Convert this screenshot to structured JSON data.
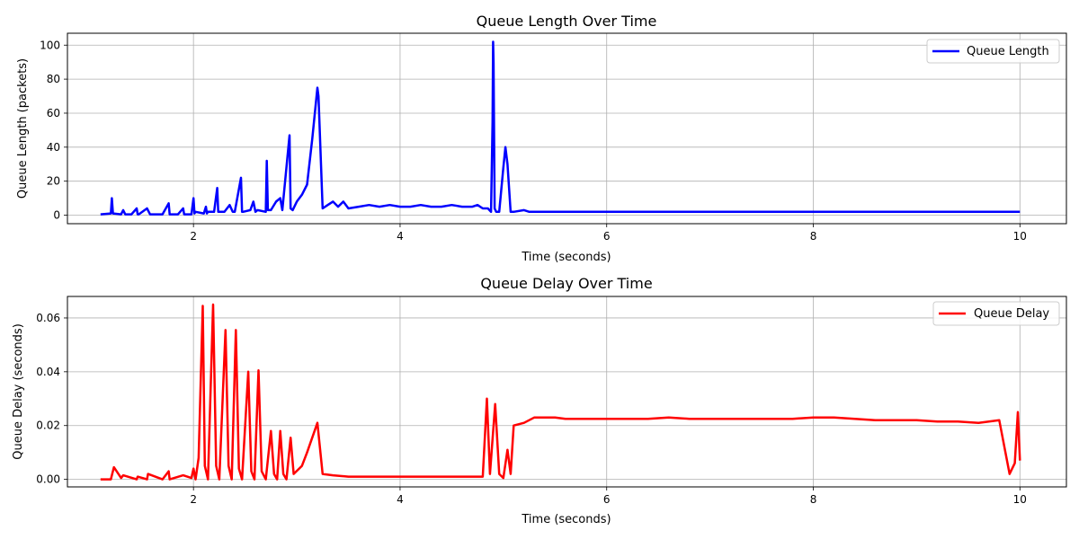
{
  "chart_data": [
    {
      "type": "line",
      "title": "Queue Length Over Time",
      "xlabel": "Time (seconds)",
      "ylabel": "Queue Length (packets)",
      "xlim": [
        0.78,
        10.45
      ],
      "ylim": [
        -5,
        107
      ],
      "xticks": [
        2,
        4,
        6,
        8,
        10
      ],
      "yticks": [
        0,
        20,
        40,
        60,
        80,
        100
      ],
      "grid": true,
      "legend_position": "top-right",
      "color": "#0000ff",
      "series": [
        {
          "name": "Queue Length",
          "x": [
            1.1,
            1.2,
            1.21,
            1.22,
            1.3,
            1.32,
            1.34,
            1.4,
            1.45,
            1.46,
            1.47,
            1.55,
            1.58,
            1.59,
            1.6,
            1.7,
            1.76,
            1.77,
            1.78,
            1.85,
            1.9,
            1.91,
            1.92,
            1.98,
            2.0,
            2.01,
            2.02,
            2.1,
            2.12,
            2.13,
            2.14,
            2.2,
            2.23,
            2.24,
            2.3,
            2.35,
            2.38,
            2.4,
            2.46,
            2.47,
            2.48,
            2.55,
            2.58,
            2.6,
            2.62,
            2.7,
            2.71,
            2.72,
            2.75,
            2.8,
            2.84,
            2.86,
            2.93,
            2.94,
            2.96,
            3.0,
            3.05,
            3.1,
            3.15,
            3.2,
            3.21,
            3.25,
            3.3,
            3.35,
            3.4,
            3.45,
            3.5,
            3.6,
            3.7,
            3.8,
            3.9,
            4.0,
            4.1,
            4.2,
            4.3,
            4.4,
            4.5,
            4.6,
            4.7,
            4.75,
            4.8,
            4.85,
            4.88,
            4.895,
            4.9,
            4.905,
            4.915,
            4.93,
            4.96,
            5.0,
            5.02,
            5.04,
            5.07,
            5.1,
            5.2,
            5.25,
            5.3,
            5.6,
            6.0,
            6.4,
            6.8,
            7.2,
            7.6,
            8.0,
            8.4,
            8.8,
            9.2,
            9.6,
            10.0
          ],
          "y": [
            0.5,
            1,
            10,
            1,
            0.5,
            3,
            0.5,
            0.5,
            4,
            0.5,
            0.5,
            4,
            0.5,
            0.5,
            0.5,
            0.5,
            7,
            0.5,
            0.5,
            0.5,
            4,
            0.5,
            0.5,
            0.5,
            10,
            1,
            2,
            1,
            5,
            1,
            2,
            2,
            16,
            2,
            2,
            6,
            2,
            2,
            22,
            2,
            2,
            3,
            8,
            2,
            3,
            2,
            32,
            3,
            3,
            8,
            10,
            3,
            47,
            4,
            3,
            8,
            12,
            18,
            45,
            75,
            70,
            4,
            6,
            8,
            5,
            8,
            4,
            5,
            6,
            5,
            6,
            5,
            5,
            6,
            5,
            5,
            6,
            5,
            5,
            6,
            4,
            4,
            2,
            55,
            102,
            90,
            4,
            2,
            2,
            28,
            40,
            30,
            2,
            2,
            3,
            2,
            2,
            2,
            2,
            2,
            2,
            2,
            2,
            2,
            2,
            2,
            2,
            2,
            2
          ]
        }
      ]
    },
    {
      "type": "line",
      "title": "Queue Delay Over Time",
      "xlabel": "Time (seconds)",
      "ylabel": "Queue Delay (seconds)",
      "xlim": [
        0.78,
        10.45
      ],
      "ylim": [
        -0.0028,
        0.068
      ],
      "xticks": [
        2,
        4,
        6,
        8,
        10
      ],
      "yticks": [
        0.0,
        0.02,
        0.04,
        0.06
      ],
      "ytick_labels": [
        "0.00",
        "0.02",
        "0.04",
        "0.06"
      ],
      "grid": true,
      "legend_position": "top-right",
      "color": "#ff0000",
      "series": [
        {
          "name": "Queue Delay",
          "x": [
            1.1,
            1.2,
            1.23,
            1.3,
            1.32,
            1.45,
            1.46,
            1.55,
            1.56,
            1.7,
            1.76,
            1.77,
            1.9,
            1.98,
            2.0,
            2.02,
            2.05,
            2.09,
            2.11,
            2.14,
            2.19,
            2.22,
            2.25,
            2.31,
            2.34,
            2.37,
            2.41,
            2.44,
            2.47,
            2.53,
            2.56,
            2.59,
            2.63,
            2.66,
            2.7,
            2.75,
            2.78,
            2.81,
            2.84,
            2.87,
            2.9,
            2.94,
            2.97,
            3.05,
            3.1,
            3.2,
            3.25,
            3.35,
            3.5,
            3.7,
            3.9,
            4.1,
            4.3,
            4.5,
            4.7,
            4.8,
            4.84,
            4.87,
            4.92,
            4.96,
            5.0,
            5.04,
            5.07,
            5.1,
            5.2,
            5.3,
            5.4,
            5.5,
            5.6,
            5.8,
            6.0,
            6.2,
            6.4,
            6.6,
            6.8,
            7.0,
            7.2,
            7.4,
            7.6,
            7.8,
            8.0,
            8.2,
            8.4,
            8.6,
            8.8,
            9.0,
            9.2,
            9.4,
            9.6,
            9.8,
            9.9,
            9.95,
            9.98,
            10.0
          ],
          "y": [
            0.0,
            0.0,
            0.0045,
            0.0005,
            0.0015,
            0.0,
            0.001,
            0.0,
            0.002,
            0.0,
            0.003,
            0.0,
            0.0015,
            0.0005,
            0.004,
            0.0,
            0.008,
            0.0645,
            0.005,
            0.0,
            0.065,
            0.005,
            0.0,
            0.0555,
            0.005,
            0.0,
            0.0555,
            0.004,
            0.0,
            0.04,
            0.003,
            0.0,
            0.0405,
            0.003,
            0.0,
            0.018,
            0.002,
            0.0,
            0.018,
            0.002,
            0.0,
            0.0155,
            0.002,
            0.005,
            0.01,
            0.021,
            0.002,
            0.0015,
            0.001,
            0.001,
            0.001,
            0.001,
            0.001,
            0.001,
            0.001,
            0.001,
            0.03,
            0.002,
            0.028,
            0.002,
            0.0005,
            0.011,
            0.002,
            0.02,
            0.021,
            0.023,
            0.023,
            0.023,
            0.0225,
            0.0225,
            0.0225,
            0.0225,
            0.0225,
            0.023,
            0.0225,
            0.0225,
            0.0225,
            0.0225,
            0.0225,
            0.0225,
            0.023,
            0.023,
            0.0225,
            0.022,
            0.022,
            0.022,
            0.0215,
            0.0215,
            0.021,
            0.022,
            0.002,
            0.006,
            0.025,
            0.007
          ]
        }
      ]
    }
  ]
}
